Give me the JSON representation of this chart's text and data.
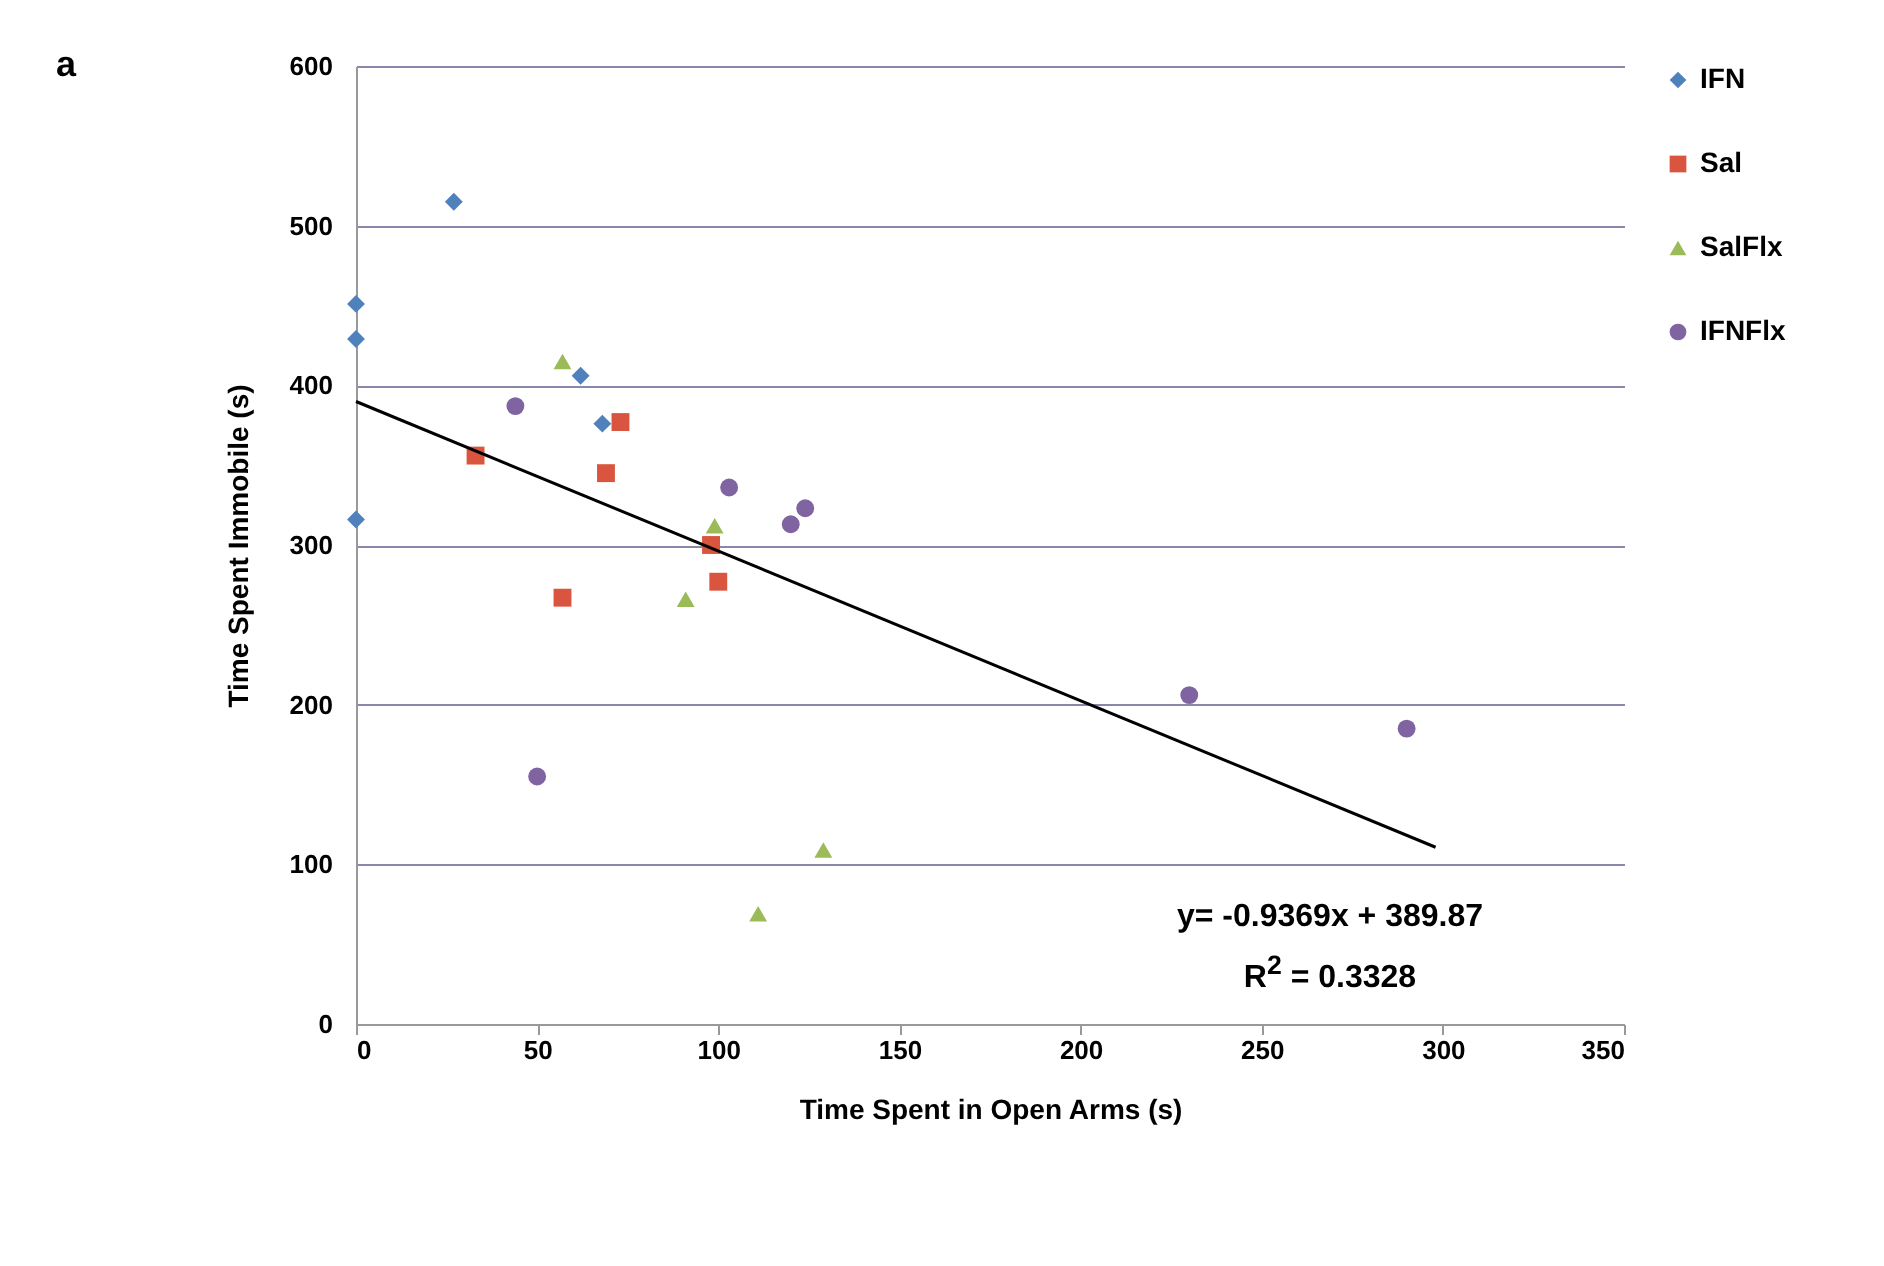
{
  "chart_data": {
    "type": "scatter",
    "xlabel": "Time Spent in Open Arms (s)",
    "ylabel": "Time Spent Immobile (s)",
    "xlim": [
      0,
      350
    ],
    "xticks": [
      0,
      50,
      100,
      150,
      200,
      250,
      300,
      350
    ],
    "ylim": [
      0,
      600
    ],
    "yticks": [
      0,
      100,
      200,
      300,
      400,
      500,
      600
    ],
    "grid": "y",
    "legend": "right",
    "annotations": [
      "a",
      "y= -0.9369x + 389.87",
      "R$^{2}$ = 0.3328"
    ],
    "series": [
      {
        "name": "IFN",
        "color": "#4f81bd",
        "marker": "diamond",
        "x": [
          27,
          0,
          0,
          62,
          68,
          0
        ],
        "values": [
          515,
          451,
          429,
          406,
          376,
          316
        ]
      },
      {
        "name": "Sal",
        "color": "#d9553f",
        "marker": "square",
        "x": [
          73,
          33,
          69,
          98,
          100,
          57
        ],
        "values": [
          377,
          356,
          345,
          300,
          277,
          267
        ]
      },
      {
        "name": "SalFlx",
        "color": "#9bbb59",
        "marker": "triangle",
        "x": [
          57,
          99,
          91,
          129,
          111
        ],
        "values": [
          415,
          312,
          266,
          109,
          69
        ]
      },
      {
        "name": "IFNFlx",
        "color": "#8064a2",
        "marker": "circle",
        "x": [
          44,
          103,
          120,
          124,
          50,
          230,
          290
        ],
        "values": [
          387,
          336,
          313,
          323,
          155,
          206,
          185
        ]
      },
      {
        "type": "line",
        "color": "#000000",
        "marker": "none",
        "x": [
          0,
          298
        ],
        "values": [
          389.87,
          110.7
        ]
      }
    ]
  }
}
